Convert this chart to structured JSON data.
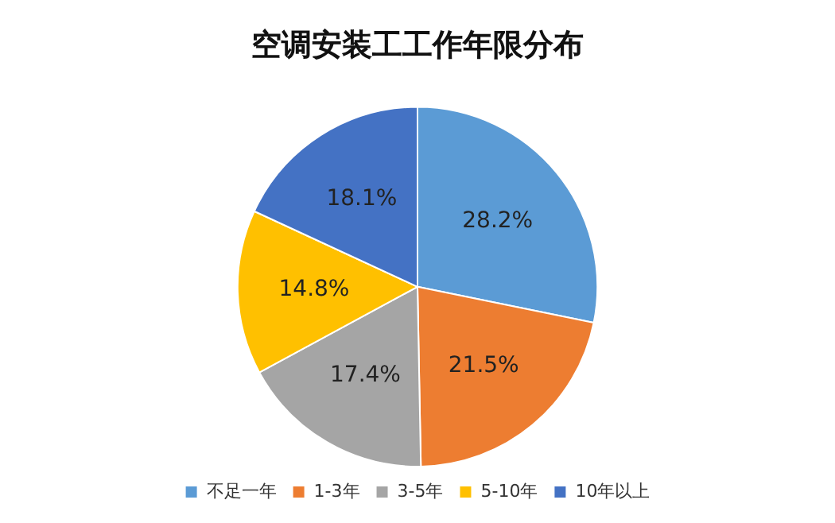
{
  "chart_data": {
    "type": "pie",
    "title": "空调安装工工作年限分布",
    "categories": [
      "不足一年",
      "1-3年",
      "3-5年",
      "5-10年",
      "10年以上"
    ],
    "values": [
      28.2,
      21.5,
      17.4,
      14.8,
      18.1
    ],
    "colors": [
      "#5b9bd5",
      "#ed7d31",
      "#a5a5a5",
      "#ffc000",
      "#4472c4"
    ],
    "value_labels": [
      "28.2%",
      "21.5%",
      "17.4%",
      "14.8%",
      "18.1%"
    ],
    "legend": "bottom"
  }
}
